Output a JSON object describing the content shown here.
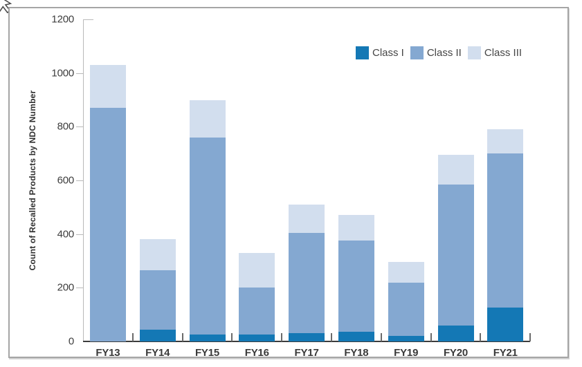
{
  "chart_data": {
    "type": "bar",
    "stacked": true,
    "title": "",
    "xlabel": "",
    "ylabel": "Count of Recalled Products by NDC Number",
    "ylim": [
      0,
      1200
    ],
    "yticks": [
      0,
      200,
      400,
      600,
      800,
      1000,
      1200
    ],
    "grid": false,
    "legend_position": "top-right",
    "categories": [
      "FY13",
      "FY14",
      "FY15",
      "FY16",
      "FY17",
      "FY18",
      "FY19",
      "FY20",
      "FY21"
    ],
    "series": [
      {
        "name": "Class I",
        "color": "#1478b5",
        "values": [
          0,
          45,
          25,
          25,
          30,
          35,
          20,
          60,
          125
        ]
      },
      {
        "name": "Class II",
        "color": "#84a8d1",
        "values": [
          870,
          220,
          735,
          175,
          375,
          340,
          200,
          525,
          575
        ]
      },
      {
        "name": "Class III",
        "color": "#d2deee",
        "values": [
          160,
          115,
          140,
          130,
          105,
          95,
          75,
          110,
          90
        ]
      }
    ],
    "totals": [
      1030,
      380,
      900,
      330,
      510,
      470,
      295,
      695,
      790
    ]
  }
}
